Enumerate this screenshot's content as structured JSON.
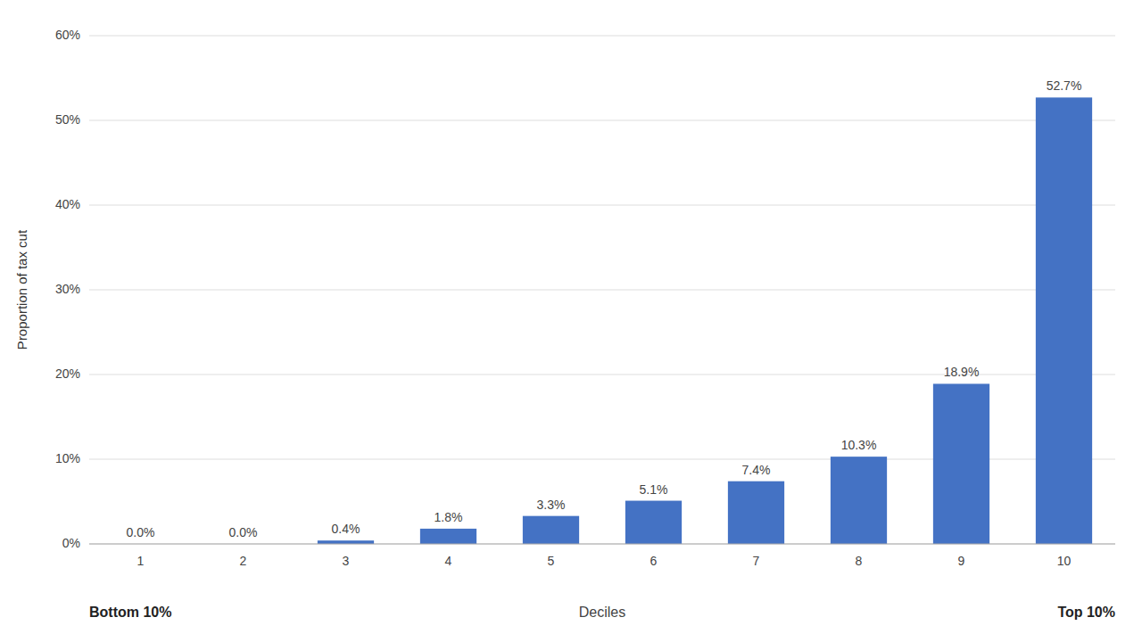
{
  "chart_data": {
    "type": "bar",
    "categories": [
      "1",
      "2",
      "3",
      "4",
      "5",
      "6",
      "7",
      "8",
      "9",
      "10"
    ],
    "values": [
      0.0,
      0.0,
      0.4,
      1.8,
      3.3,
      5.1,
      7.4,
      10.3,
      18.9,
      52.7
    ],
    "value_labels": [
      "0.0%",
      "0.0%",
      "0.4%",
      "1.8%",
      "3.3%",
      "5.1%",
      "7.4%",
      "10.3%",
      "18.9%",
      "52.7%"
    ],
    "data_labels": true,
    "color": "#4472C4",
    "ylabel": "Proportion of tax cut",
    "xlabel": "Deciles",
    "annotations": [
      "Bottom 10%",
      "Top 10%"
    ],
    "ylim": [
      0,
      60
    ],
    "yticks": [
      {
        "value": 0,
        "label": "0%"
      },
      {
        "value": 10,
        "label": "10%"
      },
      {
        "value": 20,
        "label": "20%"
      },
      {
        "value": 30,
        "label": "30%"
      },
      {
        "value": 40,
        "label": "40%"
      },
      {
        "value": 50,
        "label": "50%"
      },
      {
        "value": 60,
        "label": "60%"
      }
    ],
    "grid": true
  }
}
